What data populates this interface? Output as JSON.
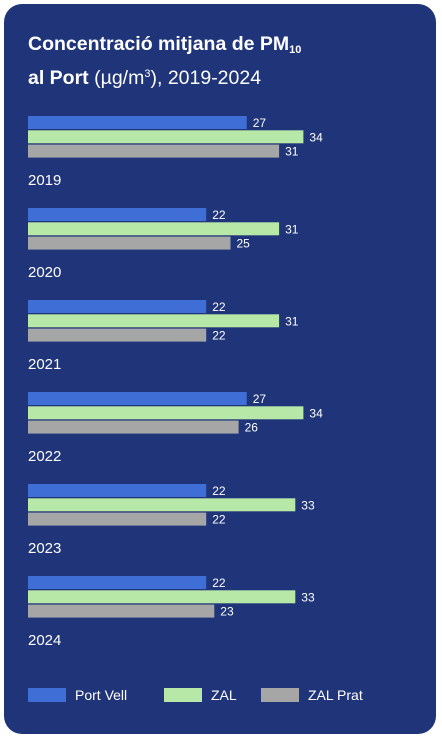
{
  "chart_data": {
    "type": "bar",
    "orientation": "horizontal",
    "title_bold": "Concentració mitjana de PM",
    "title_bold_sub": "10",
    "title_bold_line2": "al Port",
    "title_unit_pre": "(µg/m",
    "title_unit_sup": "3",
    "title_unit_post": "), 2019-2024",
    "categories": [
      "2019",
      "2020",
      "2021",
      "2022",
      "2023",
      "2024"
    ],
    "series": [
      {
        "name": "Port Vell",
        "color": "#3f6fd6",
        "values": [
          27,
          22,
          22,
          27,
          22,
          22
        ]
      },
      {
        "name": "ZAL",
        "color": "#b8e8a8",
        "values": [
          34,
          31,
          31,
          34,
          33,
          33
        ]
      },
      {
        "name": "ZAL Prat",
        "color": "#a6a6a6",
        "values": [
          31,
          25,
          22,
          26,
          22,
          23
        ]
      }
    ],
    "grid": false,
    "legend_position": "bottom",
    "value_labels": true
  },
  "colors": {
    "background": "#1f3479",
    "text": "#ffffff"
  }
}
